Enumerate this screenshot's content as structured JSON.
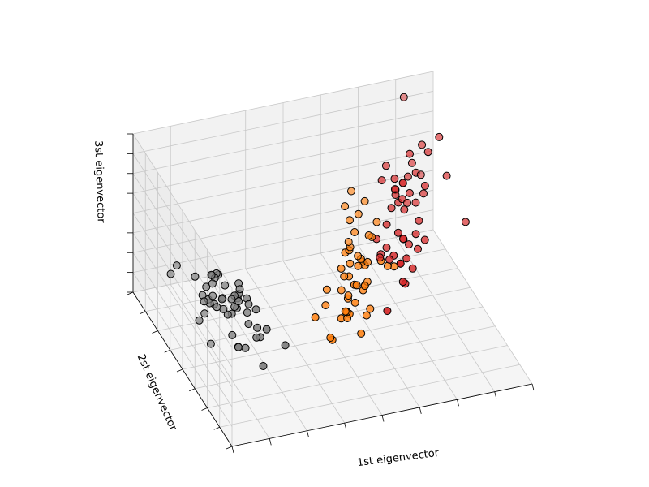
{
  "chart_data": {
    "type": "scatter3d",
    "title": "",
    "xlabel": "1st eigenvector",
    "ylabel": "2st eigenvector",
    "zlabel": "3st eigenvector",
    "grid": true,
    "tick_labels_visible": false,
    "view": {
      "elev": -150,
      "azim": 110
    },
    "series": [
      {
        "color": "#7f7f7f",
        "points": [
          [
            -2.64,
            0.32,
            -0.04
          ],
          [
            -2.89,
            -0.17,
            -0.29
          ],
          [
            -2.84,
            -0.18,
            -0.03
          ],
          [
            -2.91,
            -0.16,
            -0.16
          ],
          [
            -2.74,
            0.32,
            -0.04
          ],
          [
            -2.37,
            0.74,
            0.03
          ],
          [
            -2.97,
            -0.14,
            -0.08
          ],
          [
            -2.69,
            0.14,
            -0.09
          ],
          [
            -3.19,
            -0.62,
            -0.03
          ],
          [
            -2.84,
            -0.08,
            -0.14
          ],
          [
            -2.51,
            0.65,
            0.03
          ],
          [
            -2.75,
            -0.05,
            -0.14
          ],
          [
            -2.97,
            -0.35,
            -0.01
          ],
          [
            -3.46,
            -0.49,
            -0.02
          ],
          [
            -2.41,
            1.05,
            0.19
          ],
          [
            -2.18,
            1.32,
            0.16
          ],
          [
            -2.49,
            0.84,
            0.28
          ],
          [
            -2.59,
            0.34,
            0.15
          ],
          [
            -2.47,
            0.83,
            -0.01
          ],
          [
            -2.52,
            0.38,
            0.11
          ],
          [
            -2.39,
            0.48,
            0.04
          ],
          [
            -2.59,
            0.26,
            0.07
          ],
          [
            -3.03,
            0.21,
            0.32
          ],
          [
            -2.79,
            0.11,
            0.25
          ],
          [
            -2.76,
            0.02,
            0.21
          ],
          [
            -2.65,
            0.41,
            0.08
          ],
          [
            -2.45,
            0.3,
            0.24
          ],
          [
            -2.6,
            0.44,
            0.18
          ],
          [
            -2.55,
            0.42,
            0.21
          ],
          [
            -2.72,
            -0.07,
            0.11
          ],
          [
            -2.68,
            -0.21,
            0.06
          ],
          [
            -2.42,
            0.3,
            0.18
          ],
          [
            -2.87,
            0.76,
            -0.11
          ],
          [
            -2.63,
            1.2,
            -0.08
          ],
          [
            -2.6,
            0.08,
            0.11
          ],
          [
            -2.61,
            0.3,
            -0.27
          ],
          [
            -2.4,
            0.44,
            -0.34
          ],
          [
            -2.82,
            0.26,
            0.1
          ],
          [
            -2.68,
            -0.18,
            -0.01
          ],
          [
            -2.76,
            0.18,
            0.04
          ],
          [
            -2.66,
            0.53,
            -0.26
          ],
          [
            -2.66,
            -0.25,
            -0.66
          ],
          [
            -3.15,
            -0.03,
            -0.26
          ],
          [
            -2.44,
            0.52,
            0.21
          ],
          [
            -2.31,
            0.43,
            0.09
          ],
          [
            -2.81,
            -0.03,
            -0.04
          ],
          [
            -2.62,
            0.44,
            0.08
          ],
          [
            -2.93,
            -0.02,
            -0.06
          ],
          [
            -2.41,
            0.87,
            0.01
          ],
          [
            -2.65,
            -0.09,
            -0.2
          ]
        ]
      },
      {
        "color": "#ff7f0e",
        "points": [
          [
            1.29,
            -0.69,
            0.31
          ],
          [
            0.93,
            -0.32,
            -0.02
          ],
          [
            1.46,
            -0.5,
            0.3
          ],
          [
            0.18,
            0.83,
            -0.19
          ],
          [
            1.09,
            -0.08,
            -0.29
          ],
          [
            0.64,
            0.42,
            0.03
          ],
          [
            1.09,
            -0.28,
            -0.1
          ],
          [
            -0.75,
            1.0,
            -0.06
          ],
          [
            0.89,
            -0.15,
            0.23
          ],
          [
            -0.01,
            0.65,
            -0.12
          ],
          [
            -0.51,
            1.27,
            0.31
          ],
          [
            0.51,
            0.1,
            -0.24
          ],
          [
            0.26,
            0.55,
            0.14
          ],
          [
            0.98,
            0.12,
            0.07
          ],
          [
            -0.17,
            0.25,
            -0.04
          ],
          [
            0.93,
            -0.47,
            0.31
          ],
          [
            0.66,
            0.35,
            -0.06
          ],
          [
            0.23,
            0.33,
            -0.25
          ],
          [
            0.94,
            0.54,
            0.32
          ],
          [
            0.04,
            0.58,
            -0.1
          ],
          [
            1.12,
            0.08,
            0.29
          ],
          [
            0.36,
            0.07,
            -0.19
          ],
          [
            1.3,
            0.33,
            0.12
          ],
          [
            0.92,
            0.18,
            -0.09
          ],
          [
            0.71,
            0.15,
            0.07
          ],
          [
            0.9,
            -0.33,
            0.03
          ],
          [
            1.33,
            -0.24,
            0.11
          ],
          [
            1.56,
            -0.27,
            0.21
          ],
          [
            0.81,
            0.16,
            0.11
          ],
          [
            -0.31,
            0.37,
            -0.12
          ],
          [
            -0.07,
            0.7,
            -0.02
          ],
          [
            -0.19,
            0.68,
            -0.09
          ],
          [
            0.14,
            0.31,
            0.18
          ],
          [
            1.38,
            0.42,
            0.16
          ],
          [
            0.59,
            0.48,
            0.27
          ],
          [
            0.81,
            -0.2,
            0.33
          ],
          [
            1.22,
            -0.41,
            0.24
          ],
          [
            0.82,
            0.37,
            -0.25
          ],
          [
            0.25,
            0.27,
            0.07
          ],
          [
            0.16,
            0.68,
            0.04
          ],
          [
            0.46,
            0.67,
            -0.12
          ],
          [
            0.89,
            0.03,
            0.06
          ],
          [
            0.23,
            0.4,
            -0.08
          ],
          [
            -0.71,
            1.01,
            -0.08
          ],
          [
            0.36,
            0.5,
            0.1
          ],
          [
            0.33,
            0.21,
            0.27
          ],
          [
            0.38,
            0.29,
            0.2
          ],
          [
            0.64,
            -0.02,
            0.14
          ],
          [
            -0.91,
            0.75,
            0.02
          ],
          [
            0.3,
            0.35,
            0.11
          ]
        ]
      },
      {
        "color": "#d62728",
        "points": [
          [
            2.53,
            0.01,
            0.65
          ],
          [
            1.41,
            0.57,
            0.27
          ],
          [
            2.61,
            -0.34,
            0.28
          ],
          [
            1.97,
            0.18,
            0.2
          ],
          [
            2.35,
            0.04,
            0.33
          ],
          [
            3.39,
            -0.55,
            0.76
          ],
          [
            0.52,
            1.19,
            0.21
          ],
          [
            2.93,
            -0.35,
            0.76
          ],
          [
            2.32,
            0.24,
            0.25
          ],
          [
            2.91,
            -0.78,
            0.41
          ],
          [
            1.66,
            -0.24,
            0.64
          ],
          [
            1.8,
            0.22,
            0.29
          ],
          [
            2.16,
            -0.22,
            0.42
          ],
          [
            1.34,
            0.78,
            0.19
          ],
          [
            1.59,
            0.54,
            0.29
          ],
          [
            1.9,
            -0.12,
            0.59
          ],
          [
            1.95,
            0.04,
            0.18
          ],
          [
            3.49,
            -1.18,
            0.02
          ],
          [
            3.8,
            -0.26,
            0.03
          ],
          [
            1.3,
            0.76,
            0.2
          ],
          [
            2.43,
            -0.38,
            0.27
          ],
          [
            1.2,
            0.61,
            0.39
          ],
          [
            3.5,
            -0.46,
            0.41
          ],
          [
            1.39,
            0.2,
            0.46
          ],
          [
            2.28,
            -0.33,
            0.51
          ],
          [
            2.61,
            -0.56,
            0.42
          ],
          [
            1.26,
            0.18,
            0.16
          ],
          [
            1.29,
            0.12,
            0.09
          ],
          [
            2.12,
            0.21,
            0.31
          ],
          [
            2.39,
            -0.46,
            0.43
          ],
          [
            2.84,
            -0.38,
            0.33
          ],
          [
            3.23,
            -1.37,
            0.72
          ],
          [
            2.16,
            0.22,
            0.16
          ],
          [
            1.44,
            0.14,
            0.19
          ],
          [
            1.78,
            0.5,
            0.15
          ],
          [
            3.08,
            -0.69,
            0.63
          ],
          [
            2.14,
            -0.14,
            0.36
          ],
          [
            1.91,
            -0.05,
            0.5
          ],
          [
            1.17,
            0.16,
            0.31
          ],
          [
            2.11,
            -0.37,
            0.44
          ],
          [
            2.31,
            -0.18,
            0.49
          ],
          [
            1.92,
            -0.41,
            0.67
          ],
          [
            1.41,
            0.57,
            0.27
          ],
          [
            2.56,
            -0.28,
            0.62
          ],
          [
            2.42,
            -0.3,
            0.81
          ],
          [
            1.94,
            -0.19,
            0.66
          ],
          [
            1.53,
            0.37,
            0.46
          ],
          [
            1.76,
            -0.08,
            0.44
          ],
          [
            1.9,
            -0.12,
            0.54
          ],
          [
            1.39,
            0.28,
            0.15
          ]
        ]
      }
    ]
  }
}
